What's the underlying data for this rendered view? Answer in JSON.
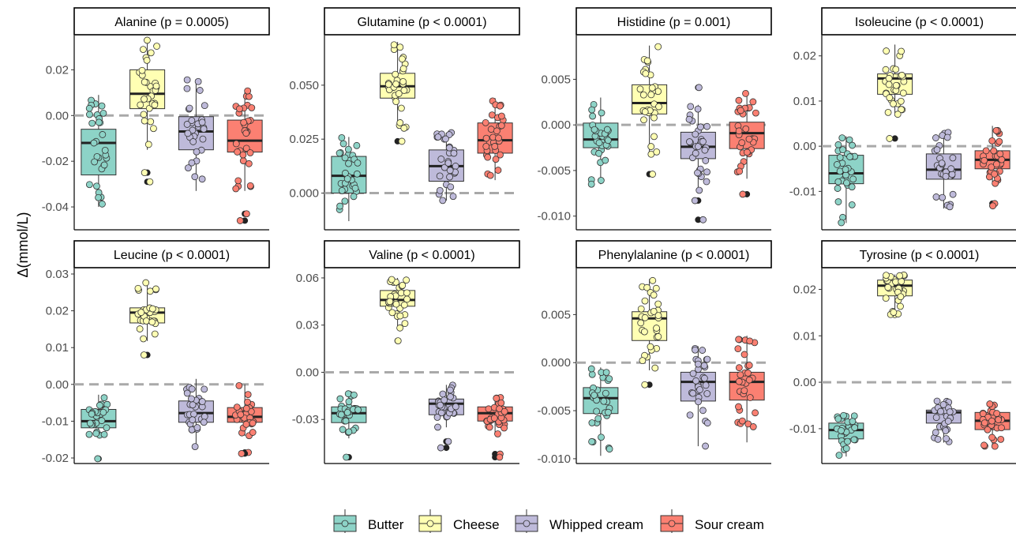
{
  "chart_data": {
    "type": "box",
    "ylabel": "Δ(mmol/L)",
    "reference_line": 0,
    "legend_position": "bottom",
    "groups": [
      {
        "name": "Butter",
        "color": "#8dd3c7"
      },
      {
        "name": "Cheese",
        "color": "#ffffb3"
      },
      {
        "name": "Whipped cream",
        "color": "#bebada"
      },
      {
        "name": "Sour cream",
        "color": "#fb8072"
      }
    ],
    "panels": [
      {
        "title": "Alanine (p = 0.0005)",
        "ylim": [
          -0.05,
          0.035
        ],
        "ticks": [
          -0.04,
          -0.02,
          0.0,
          0.02
        ],
        "tick_labels": [
          "-0.04",
          "-0.02",
          "0.00",
          "0.02"
        ],
        "boxes": [
          {
            "group": "Butter",
            "q1": -0.026,
            "median": -0.012,
            "q3": -0.006,
            "whisker_low": -0.04,
            "whisker_high": 0.009,
            "outliers": []
          },
          {
            "group": "Cheese",
            "q1": 0.003,
            "median": 0.0095,
            "q3": 0.02,
            "whisker_low": -0.015,
            "whisker_high": 0.033,
            "outliers": [
              -0.025,
              -0.029
            ]
          },
          {
            "group": "Whipped cream",
            "q1": -0.015,
            "median": -0.007,
            "q3": -0.0005,
            "whisker_low": -0.033,
            "whisker_high": 0.016,
            "outliers": []
          },
          {
            "group": "Sour cream",
            "q1": -0.016,
            "median": -0.011,
            "q3": -0.002,
            "whisker_low": -0.033,
            "whisker_high": 0.011,
            "outliers": [
              -0.043,
              -0.046
            ]
          }
        ]
      },
      {
        "title": "Glutamine (p < 0.0001)",
        "ylim": [
          -0.017,
          0.073
        ],
        "ticks": [
          0.0,
          0.025,
          0.05
        ],
        "tick_labels": [
          "0.000",
          "0.025",
          "0.050"
        ],
        "boxes": [
          {
            "group": "Butter",
            "q1": 0.0,
            "median": 0.008,
            "q3": 0.017,
            "whisker_low": -0.013,
            "whisker_high": 0.026,
            "outliers": []
          },
          {
            "group": "Cheese",
            "q1": 0.044,
            "median": 0.0495,
            "q3": 0.0555,
            "whisker_low": 0.03,
            "whisker_high": 0.07,
            "outliers": [
              0.024
            ]
          },
          {
            "group": "Whipped cream",
            "q1": 0.0055,
            "median": 0.0125,
            "q3": 0.02,
            "whisker_low": -0.0035,
            "whisker_high": 0.028,
            "outliers": []
          },
          {
            "group": "Sour cream",
            "q1": 0.0185,
            "median": 0.0245,
            "q3": 0.0325,
            "whisker_low": 0.006,
            "whisker_high": 0.044,
            "outliers": []
          }
        ]
      },
      {
        "title": "Histidine (p = 0.001)",
        "ylim": [
          -0.0115,
          0.0098
        ],
        "ticks": [
          -0.01,
          -0.005,
          0.0,
          0.005
        ],
        "tick_labels": [
          "-0.010",
          "-0.005",
          "0.000",
          "0.005"
        ],
        "boxes": [
          {
            "group": "Butter",
            "q1": -0.0025,
            "median": -0.0016,
            "q3": 0.0002,
            "whisker_low": -0.0065,
            "whisker_high": 0.003,
            "outliers": []
          },
          {
            "group": "Cheese",
            "q1": 0.0012,
            "median": 0.0024,
            "q3": 0.0044,
            "whisker_low": -0.0033,
            "whisker_high": 0.0087,
            "outliers": [
              -0.0054
            ]
          },
          {
            "group": "Whipped cream",
            "q1": -0.0037,
            "median": -0.0024,
            "q3": -0.0008,
            "whisker_low": -0.0072,
            "whisker_high": 0.0022,
            "outliers": [
              -0.0083,
              -0.0104,
              0.0041
            ]
          },
          {
            "group": "Sour cream",
            "q1": -0.0026,
            "median": -0.0009,
            "q3": 0.0003,
            "whisker_low": -0.0059,
            "whisker_high": 0.0038,
            "outliers": [
              -0.0076
            ]
          }
        ]
      },
      {
        "title": "Isoleucine (p < 0.0001)",
        "ylim": [
          -0.0185,
          0.0245
        ],
        "ticks": [
          -0.01,
          0.0,
          0.01,
          0.02
        ],
        "tick_labels": [
          "-0.01",
          "0.00",
          "0.01",
          "0.02"
        ],
        "boxes": [
          {
            "group": "Butter",
            "q1": -0.0083,
            "median": -0.006,
            "q3": -0.002,
            "whisker_low": -0.017,
            "whisker_high": 0.0022,
            "outliers": []
          },
          {
            "group": "Cheese",
            "q1": 0.0115,
            "median": 0.015,
            "q3": 0.016,
            "whisker_low": 0.007,
            "whisker_high": 0.0225,
            "outliers": [
              0.0017
            ]
          },
          {
            "group": "Whipped cream",
            "q1": -0.0073,
            "median": -0.0052,
            "q3": -0.0017,
            "whisker_low": -0.0138,
            "whisker_high": 0.0032,
            "outliers": []
          },
          {
            "group": "Sour cream",
            "q1": -0.005,
            "median": -0.003,
            "q3": -0.001,
            "whisker_low": -0.0083,
            "whisker_high": 0.0045,
            "outliers": [
              -0.0127,
              -0.0132
            ]
          }
        ]
      },
      {
        "title": "Leucine (p < 0.0001)",
        "ylim": [
          -0.0215,
          0.0315
        ],
        "ticks": [
          -0.02,
          -0.01,
          0.0,
          0.01,
          0.02,
          0.03
        ],
        "tick_labels": [
          "-0.02",
          "-0.01",
          "0.00",
          "0.01",
          "0.02",
          "0.03"
        ],
        "boxes": [
          {
            "group": "Butter",
            "q1": -0.0118,
            "median": -0.01,
            "q3": -0.0068,
            "whisker_low": -0.0145,
            "whisker_high": -0.0028,
            "outliers": [
              -0.0202
            ]
          },
          {
            "group": "Cheese",
            "q1": 0.0167,
            "median": 0.0195,
            "q3": 0.0208,
            "whisker_low": 0.0118,
            "whisker_high": 0.0277,
            "outliers": [
              0.008
            ]
          },
          {
            "group": "Whipped cream",
            "q1": -0.0103,
            "median": -0.0078,
            "q3": -0.0045,
            "whisker_low": -0.0172,
            "whisker_high": 0.0015,
            "outliers": []
          },
          {
            "group": "Sour cream",
            "q1": -0.0103,
            "median": -0.0088,
            "q3": -0.0063,
            "whisker_low": -0.014,
            "whisker_high": 0.0,
            "outliers": [
              -0.0185,
              -0.0188
            ]
          }
        ]
      },
      {
        "title": "Valine (p < 0.0001)",
        "ylim": [
          -0.058,
          0.066
        ],
        "ticks": [
          -0.03,
          0.0,
          0.03,
          0.06
        ],
        "tick_labels": [
          "-0.03",
          "0.00",
          "0.03",
          "0.06"
        ],
        "boxes": [
          {
            "group": "Butter",
            "q1": -0.032,
            "median": -0.026,
            "q3": -0.022,
            "whisker_low": -0.042,
            "whisker_high": -0.012,
            "outliers": [
              -0.054
            ]
          },
          {
            "group": "Cheese",
            "q1": 0.042,
            "median": 0.046,
            "q3": 0.052,
            "whisker_low": 0.028,
            "whisker_high": 0.06,
            "outliers": [
              0.02
            ]
          },
          {
            "group": "Whipped cream",
            "q1": -0.027,
            "median": -0.02,
            "q3": -0.017,
            "whisker_low": -0.035,
            "whisker_high": -0.008,
            "outliers": [
              -0.044,
              -0.048
            ]
          },
          {
            "group": "Sour cream",
            "q1": -0.031,
            "median": -0.026,
            "q3": -0.022,
            "whisker_low": -0.04,
            "whisker_high": -0.016,
            "outliers": [
              -0.052,
              -0.054
            ]
          }
        ]
      },
      {
        "title": "Phenylalanine (p < 0.0001)",
        "ylim": [
          -0.0105,
          0.0098
        ],
        "ticks": [
          -0.01,
          -0.005,
          0.0,
          0.005
        ],
        "tick_labels": [
          "-0.010",
          "-0.005",
          "0.000",
          "0.005"
        ],
        "boxes": [
          {
            "group": "Butter",
            "q1": -0.0053,
            "median": -0.0037,
            "q3": -0.0026,
            "whisker_low": -0.0097,
            "whisker_high": -0.0005,
            "outliers": []
          },
          {
            "group": "Cheese",
            "q1": 0.0023,
            "median": 0.0046,
            "q3": 0.0053,
            "whisker_low": -0.0008,
            "whisker_high": 0.0087,
            "outliers": [
              -0.0023
            ]
          },
          {
            "group": "Whipped cream",
            "q1": -0.004,
            "median": -0.002,
            "q3": -0.001,
            "whisker_low": -0.0087,
            "whisker_high": 0.0017,
            "outliers": []
          },
          {
            "group": "Sour cream",
            "q1": -0.0039,
            "median": -0.002,
            "q3": -0.001,
            "whisker_low": -0.0083,
            "whisker_high": 0.0028,
            "outliers": []
          }
        ]
      },
      {
        "title": "Tyrosine (p < 0.0001)",
        "ylim": [
          -0.0175,
          0.0245
        ],
        "ticks": [
          -0.01,
          0.0,
          0.01,
          0.02
        ],
        "tick_labels": [
          "-0.01",
          "0.00",
          "0.01",
          "0.02"
        ],
        "boxes": [
          {
            "group": "Butter",
            "q1": -0.0122,
            "median": -0.0103,
            "q3": -0.0088,
            "whisker_low": -0.016,
            "whisker_high": -0.007,
            "outliers": []
          },
          {
            "group": "Cheese",
            "q1": 0.0186,
            "median": 0.0208,
            "q3": 0.022,
            "whisker_low": 0.0145,
            "whisker_high": 0.0232,
            "outliers": []
          },
          {
            "group": "Whipped cream",
            "q1": -0.0088,
            "median": -0.0065,
            "q3": -0.006,
            "whisker_low": -0.013,
            "whisker_high": -0.004,
            "outliers": []
          },
          {
            "group": "Sour cream",
            "q1": -0.0102,
            "median": -0.0083,
            "q3": -0.0065,
            "whisker_low": -0.0138,
            "whisker_high": -0.0045,
            "outliers": []
          }
        ]
      }
    ]
  }
}
